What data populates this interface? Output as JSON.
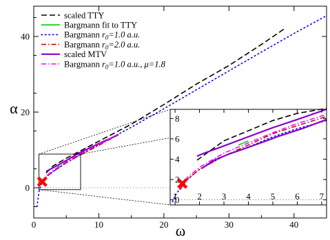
{
  "chart_data": {
    "type": "line",
    "xlabel": "ω",
    "ylabel": "α",
    "xlim": [
      0,
      45
    ],
    "ylim": [
      -8,
      48
    ],
    "xticks": [
      0,
      10,
      20,
      30,
      40
    ],
    "yticks": [
      0,
      20,
      40
    ],
    "legend_placement": "top-left",
    "series": [
      {
        "name": "scaled TTY",
        "color": "#000000",
        "style": "dash",
        "x": [
          1.9,
          3,
          5,
          7,
          10,
          15,
          20,
          25,
          30,
          35,
          38.5
        ],
        "y": [
          3.9,
          5.8,
          7.8,
          9.6,
          12.3,
          16.8,
          22.0,
          27.4,
          32.3,
          37.9,
          42.0
        ]
      },
      {
        "name": "Bargmann fit to TTY",
        "color": "#00cc00",
        "style": "solid",
        "x": [
          3.6,
          4.0
        ],
        "y": [
          5.4,
          5.8
        ]
      },
      {
        "name": "Bargmann r0=1.0 a.u.",
        "label_main": "Bargmann ",
        "label_sym": "r",
        "label_sub": "0",
        "label_tail": "=1.0 a.u.",
        "color": "#0000ff",
        "style": "dot",
        "x": [
          0.5,
          0.8,
          1.2,
          2,
          3,
          5,
          7,
          10,
          15,
          20,
          25,
          30,
          35,
          40,
          45
        ],
        "y": [
          -5.0,
          -1.0,
          1.0,
          3.0,
          4.3,
          6.6,
          8.6,
          11.4,
          16.0,
          20.9,
          25.9,
          30.9,
          35.9,
          40.8,
          45.5
        ]
      },
      {
        "name": "Bargmann r0=2.0 a.u.",
        "label_main": "Bargmann ",
        "label_sym": "r",
        "label_sub": "0",
        "label_tail": "=2.0 a.u.",
        "color": "#cc0000",
        "style": "dashdot",
        "x": [
          1.2,
          2,
          3,
          5,
          7,
          10,
          13
        ],
        "y": [
          1.0,
          3.0,
          4.3,
          6.6,
          8.5,
          11.2,
          14.0
        ]
      },
      {
        "name": "scaled MTV",
        "color": "#8800cc",
        "style": "solid",
        "x": [
          1.9,
          2.2,
          3,
          5,
          7,
          10,
          13
        ],
        "y": [
          4.3,
          4.6,
          5.3,
          7.2,
          9.2,
          11.7,
          14.0
        ]
      },
      {
        "name": "Bargmann r0=1.0 a.u., μ=1.8",
        "label_main": "Bargmann ",
        "label_sym": "r",
        "label_sub": "0",
        "label_tail": "=1.0 a.u., μ=1.8",
        "color": "#ff00ff",
        "style": "dashdot",
        "x": [
          1.2,
          2,
          3,
          5,
          7,
          10,
          13
        ],
        "y": [
          1.1,
          3.2,
          4.6,
          6.8,
          8.8,
          11.5,
          14.2
        ]
      }
    ],
    "markers": [
      {
        "name": "red-cross",
        "color": "#ff0000",
        "x": 1.3,
        "y": 1.6
      }
    ],
    "inset": {
      "xlim": [
        0.8,
        7.2
      ],
      "ylim": [
        -0.5,
        8.9
      ],
      "xticks": [
        1,
        2,
        3,
        4,
        5,
        6,
        7
      ],
      "xtick_labels": [
        "1",
        "2",
        "3",
        "4",
        "5",
        "6",
        "7"
      ],
      "yticks": [
        0,
        2,
        4,
        6,
        8
      ],
      "series": [
        {
          "ref": 0,
          "x": [
            1.9,
            3,
            4,
            5,
            6,
            7.2
          ],
          "y": [
            3.9,
            5.8,
            6.8,
            7.8,
            8.5,
            9.0
          ]
        },
        {
          "ref": 1,
          "x": [
            3.6,
            3.8,
            4.0
          ],
          "y": [
            5.4,
            5.6,
            5.8
          ]
        },
        {
          "ref": 2,
          "x": [
            0.9,
            1.0,
            1.2,
            1.5,
            2,
            3,
            4,
            5,
            6,
            7.2
          ],
          "y": [
            -0.2,
            0.4,
            1.1,
            2.0,
            3.0,
            4.3,
            5.2,
            6.2,
            7.0,
            7.8
          ]
        },
        {
          "ref": 3,
          "x": [
            1.2,
            1.5,
            2,
            3,
            4,
            5,
            6,
            7.2
          ],
          "y": [
            1.0,
            2.0,
            3.0,
            4.3,
            5.4,
            6.5,
            7.3,
            8.2
          ]
        },
        {
          "ref": 4,
          "x": [
            1.9,
            2.2,
            3,
            4,
            5,
            6,
            7.2
          ],
          "y": [
            4.3,
            4.6,
            5.3,
            6.2,
            7.1,
            7.9,
            8.9
          ]
        },
        {
          "ref": 5,
          "x": [
            1.2,
            1.5,
            2,
            3,
            4,
            5,
            6,
            7.2
          ],
          "y": [
            1.1,
            2.2,
            3.2,
            4.6,
            5.6,
            6.6,
            7.5,
            8.4
          ]
        },
        {
          "ref": 4,
          "x": [
            2.1,
            2.6,
            3.2,
            3.8,
            4.5,
            5.3,
            6.2,
            7.2
          ],
          "y": [
            3.1,
            3.9,
            4.5,
            5.0,
            5.6,
            6.3,
            7.0,
            7.9
          ]
        }
      ],
      "markers": [
        {
          "name": "red-cross",
          "color": "#ff0000",
          "x": 1.3,
          "y": 1.6
        }
      ],
      "zoom_region": {
        "x": [
          0.8,
          7.2
        ],
        "y": [
          -0.5,
          8.9
        ]
      }
    }
  }
}
